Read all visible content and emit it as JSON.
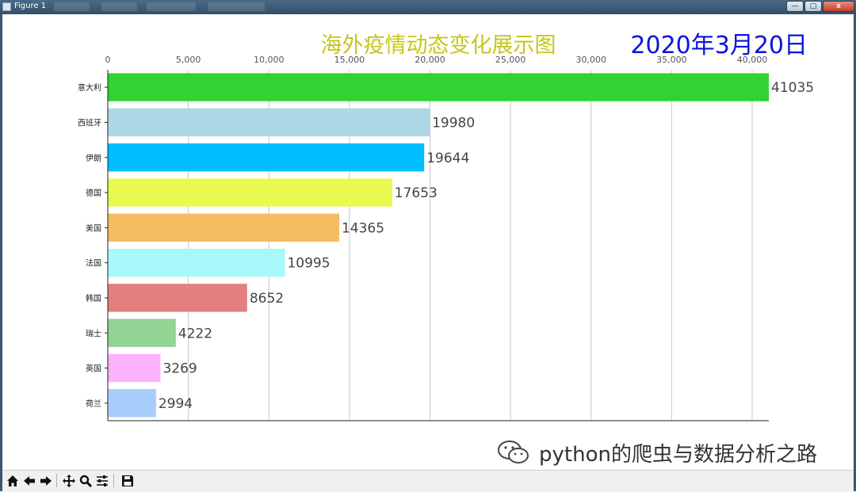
{
  "window": {
    "title": "Figure 1",
    "buttons": {
      "minimize": "—",
      "maximize": "□",
      "close": "x"
    }
  },
  "colors": {
    "title": "#c6c61a",
    "date": "#0a14d8",
    "grid": "#c8c8c8"
  },
  "watermark": {
    "text": "python的爬虫与数据分析之路",
    "icon": "wechat-icon"
  },
  "toolbar": {
    "buttons": [
      "home-icon",
      "back-icon",
      "forward-icon",
      "pan-icon",
      "zoom-icon",
      "configure-subplots-icon",
      "save-icon"
    ]
  },
  "chart_data": {
    "type": "bar",
    "orientation": "horizontal",
    "title": "海外疫情动态变化展示图",
    "date_label": "2020年3月20日",
    "xlim": [
      0,
      41035
    ],
    "x_ticks": [
      0,
      5000,
      10000,
      15000,
      20000,
      25000,
      30000,
      35000,
      40000
    ],
    "x_tick_labels": [
      "0",
      "5,000",
      "10,000",
      "15,000",
      "20,000",
      "25,000",
      "30,000",
      "35,000",
      "40,000"
    ],
    "x_axis_position": "top",
    "grid": "vertical",
    "categories": [
      "意大利",
      "西班牙",
      "伊朗",
      "德国",
      "美国",
      "法国",
      "韩国",
      "瑞士",
      "英国",
      "荷兰"
    ],
    "values": [
      41035,
      19980,
      19644,
      17653,
      14365,
      10995,
      8652,
      4222,
      3269,
      2994
    ],
    "bar_colors": [
      "#32d232",
      "#add8e6",
      "#00bfff",
      "#e8fa50",
      "#f5bc63",
      "#a7f8fb",
      "#e47f7f",
      "#91d493",
      "#fcb2fc",
      "#a9cdfb"
    ],
    "value_labels": [
      "41035",
      "19980",
      "19644",
      "17653",
      "14365",
      "10995",
      "8652",
      "4222",
      "3269",
      "2994"
    ]
  }
}
